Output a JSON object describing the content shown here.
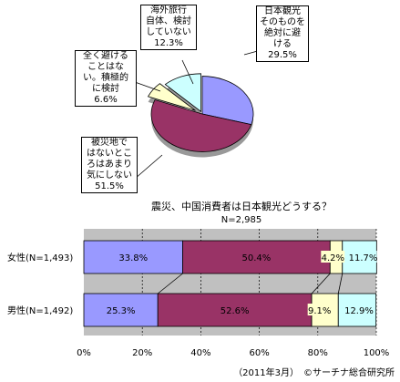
{
  "chart_data": [
    {
      "type": "pie",
      "title": "震災、中国消費者は日本観光どうする？",
      "subtitle": "N=2,985",
      "slices": [
        {
          "label_lines": [
            "日本観光",
            "そのものを",
            "絶対に避",
            "ける"
          ],
          "value": 29.5,
          "value_label": "29.5%",
          "color": "#9999ff"
        },
        {
          "label_lines": [
            "被災地で",
            "はないとこ",
            "ろはあまり",
            "気にしない"
          ],
          "value": 51.5,
          "value_label": "51.5%",
          "color": "#993366"
        },
        {
          "label_lines": [
            "全く避ける",
            "ことはな",
            "い。積極的",
            "に検討"
          ],
          "value": 6.6,
          "value_label": "6.6%",
          "color": "#ffffcc"
        },
        {
          "label_lines": [
            "海外旅行",
            "自体、検討",
            "していない"
          ],
          "value": 12.3,
          "value_label": "12.3%",
          "color": "#ccffff"
        }
      ]
    },
    {
      "type": "bar",
      "orientation": "horizontal",
      "stacked": "100%",
      "categories": [
        "女性(N=1,493)",
        "男性(N=1,492)"
      ],
      "series": [
        {
          "color": "#9999ff",
          "values": [
            33.8,
            25.3
          ],
          "labels": [
            "33.8%",
            "25.3%"
          ]
        },
        {
          "color": "#993366",
          "values": [
            50.4,
            52.6
          ],
          "labels": [
            "50.4%",
            "52.6%"
          ]
        },
        {
          "color": "#ffffcc",
          "values": [
            4.2,
            9.1
          ],
          "labels": [
            "4.2%",
            "9.1%"
          ]
        },
        {
          "color": "#ccffff",
          "values": [
            11.7,
            12.9
          ],
          "labels": [
            "11.7%",
            "12.9%"
          ]
        }
      ],
      "xlim": [
        0,
        100
      ],
      "xticks": [
        "0%",
        "20%",
        "40%",
        "60%",
        "80%",
        "100%"
      ],
      "grid": "vertical dashed",
      "footnote": "（2011年3月）　©サーチナ総合研究所"
    }
  ]
}
